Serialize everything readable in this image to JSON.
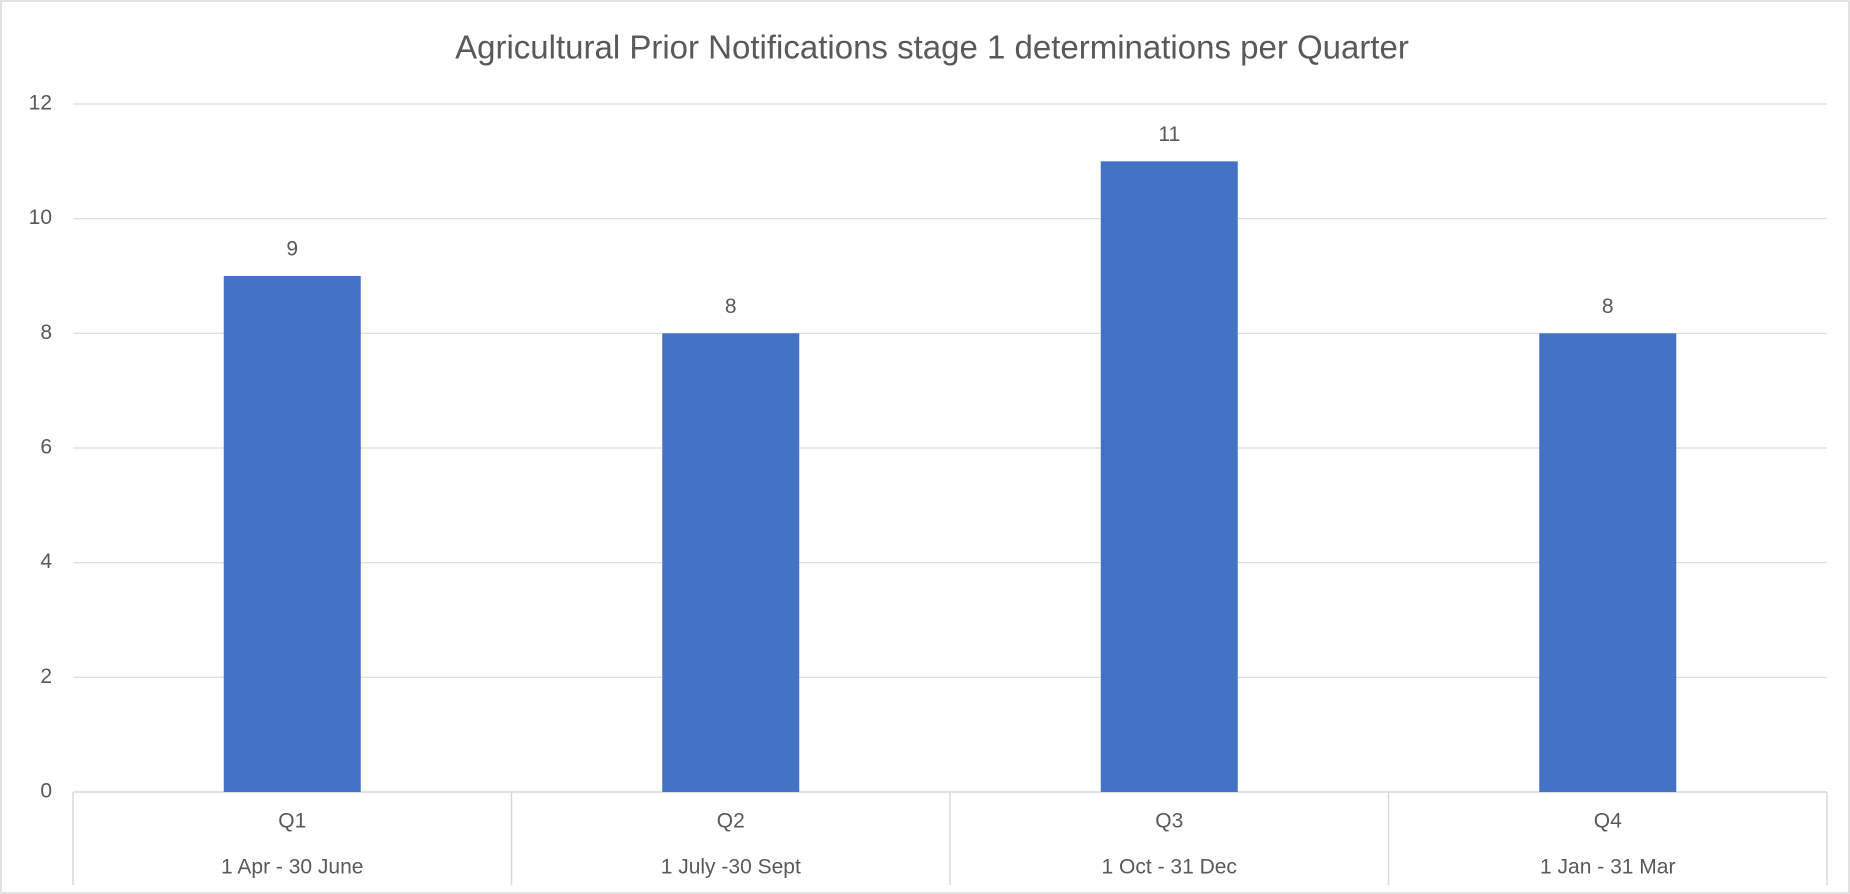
{
  "chart_data": {
    "type": "bar",
    "title": "Agricultural Prior Notifications stage 1 determinations per Quarter",
    "categories": [
      "Q1",
      "Q2",
      "Q3",
      "Q4"
    ],
    "category_periods": [
      "1 Apr - 30 June",
      "1 July -30 Sept",
      "1 Oct - 31 Dec",
      "1 Jan - 31 Mar"
    ],
    "values": [
      9,
      8,
      11,
      8
    ],
    "color": "#4472c4",
    "ylim": [
      0,
      12
    ],
    "yticks": [
      0,
      2,
      4,
      6,
      8,
      10,
      12
    ],
    "grid": true
  }
}
